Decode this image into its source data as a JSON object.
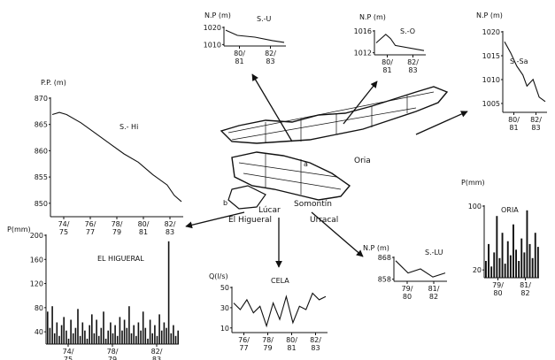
{
  "map": {
    "labels": {
      "oria": "Oria",
      "somontin": "Somontín",
      "lucar": "Lúcar",
      "higueral": "El Higueral",
      "urracal": "Urracal",
      "a": "a",
      "b": "b"
    }
  },
  "charts": [
    {
      "id": "s-u",
      "type": "line",
      "title": "S.-U",
      "ylabel": "N.P (m)",
      "y_ticks": [
        "1020",
        "1010"
      ],
      "x_ticks": [
        "80/\n81",
        "82/\n83"
      ],
      "series": [
        {
          "x": [
            0,
            0.2,
            0.5,
            0.8,
            1
          ],
          "y": [
            1020,
            1018.5,
            1018,
            1017,
            1016.5
          ]
        }
      ]
    },
    {
      "id": "s-o",
      "type": "line",
      "title": "S.-O",
      "ylabel": "N.P (m)",
      "y_ticks": [
        "1016",
        "1012"
      ],
      "x_ticks": [
        "80/\n81",
        "82/\n83"
      ],
      "series": [
        {
          "x": [
            0,
            0.1,
            0.2,
            0.3,
            0.4,
            1
          ],
          "y": [
            1014.5,
            1015.0,
            1015.5,
            1015.0,
            1014.2,
            1013.6
          ]
        }
      ]
    },
    {
      "id": "s-sa",
      "type": "line",
      "title": "S.-Sa",
      "ylabel": "N.P (m)",
      "y_ticks": [
        "1020",
        "1015",
        "1010",
        "1005"
      ],
      "x_ticks": [
        "80/\n81",
        "82/\n83"
      ],
      "series": [
        {
          "x": [
            0,
            0.15,
            0.3,
            0.45,
            0.55,
            0.7,
            0.85,
            1
          ],
          "y": [
            1019.5,
            1017.0,
            1014.0,
            1012.0,
            1009.5,
            1011.0,
            1007.0,
            1006.0
          ]
        }
      ]
    },
    {
      "id": "s-hi",
      "type": "line",
      "title": "S.- Hi",
      "ylabel": "P.P. (m)",
      "y_ticks": [
        "870",
        "865",
        "860",
        "855",
        "850"
      ],
      "x_ticks": [
        "74/\n75",
        "76/\n77",
        "78/\n79",
        "80/\n81",
        "82/\n83"
      ],
      "series": [
        {
          "x": [
            74,
            74.5,
            75,
            76,
            77,
            78,
            79,
            80,
            81,
            82,
            82.5,
            83
          ],
          "y": [
            870.5,
            871,
            870.5,
            868.5,
            866.0,
            863.5,
            861.0,
            859.0,
            856.0,
            853.5,
            851.0,
            849.5
          ]
        }
      ]
    },
    {
      "id": "s-lu",
      "type": "line",
      "title": "S.-LU",
      "ylabel": "N.P (m)",
      "y_ticks": [
        "868",
        "858"
      ],
      "x_ticks": [
        "79/\n80",
        "81/\n82"
      ],
      "series": [
        {
          "x": [
            0,
            0.25,
            0.5,
            0.75,
            1
          ],
          "y": [
            866.8,
            866.5,
            866.6,
            866.4,
            866.5
          ]
        }
      ]
    },
    {
      "id": "cela",
      "type": "line",
      "title": "CELA",
      "ylabel": "Q(l/s)",
      "y_ticks": [
        "50",
        "30",
        "10"
      ],
      "x_ticks": [
        "76/\n77",
        "78/\n79",
        "80/\n81",
        "82/\n83"
      ],
      "series": [
        {
          "x": [
            76,
            76.5,
            77,
            77.5,
            78,
            78.5,
            79,
            79.5,
            80,
            80.5,
            81,
            81.5,
            82,
            82.5,
            83
          ],
          "y": [
            45,
            43,
            46,
            42,
            44,
            38,
            45,
            40,
            47,
            39,
            44,
            43,
            48,
            46,
            47
          ]
        }
      ]
    },
    {
      "id": "higueral",
      "type": "bar",
      "title": "EL HIGUERAL",
      "ylabel": "P(mm)",
      "y_ticks": [
        "200",
        "160",
        "120",
        "80",
        "40"
      ],
      "x_ticks": [
        "74/\n75",
        "78/\n79",
        "82/\n83"
      ],
      "values": [
        60,
        30,
        70,
        20,
        40,
        15,
        35,
        50,
        25,
        10,
        45,
        20,
        30,
        65,
        15,
        40,
        25,
        10,
        35,
        55,
        20,
        45,
        15,
        30,
        60,
        10,
        25,
        40,
        20,
        35,
        15,
        50,
        25,
        45,
        30,
        70,
        20,
        35,
        15,
        40,
        25,
        60,
        30,
        10,
        45,
        20,
        35,
        15,
        55,
        25,
        40,
        30,
        190,
        20,
        35,
        15,
        25
      ]
    },
    {
      "id": "oria",
      "type": "bar",
      "title": "ORIA",
      "ylabel": "P(mm)",
      "y_ticks": [
        "100",
        "20"
      ],
      "x_ticks": [
        "79/\n80",
        "81/\n82"
      ],
      "values": [
        30,
        60,
        20,
        45,
        110,
        35,
        80,
        25,
        65,
        40,
        95,
        50,
        30,
        70,
        45,
        120,
        60,
        35,
        80,
        55
      ]
    }
  ],
  "colors": {
    "ink": "#111111",
    "background": "#ffffff"
  }
}
